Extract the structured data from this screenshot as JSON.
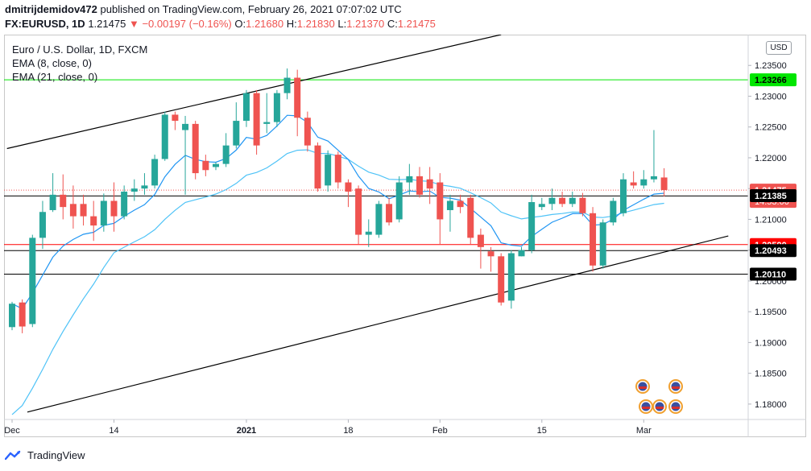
{
  "header": {
    "username": "dmitrijdemidov472",
    "published_text": "published on TradingView.com, February 26, 2021 07:07:02 UTC",
    "symbol": "FX:EURUSD, 1D",
    "last_price": "1.21475",
    "change_arrow": "▼",
    "change": "−0.00197 (−0.16%)",
    "o_label": "O:",
    "o_value": "1.21680",
    "h_label": "H:",
    "h_value": "1.21830",
    "l_label": "L:",
    "l_value": "1.21370",
    "c_label": "C:",
    "c_value": "1.21475"
  },
  "legend": {
    "title": "Euro / U.S. Dollar, 1D, FXCM",
    "ema8": "EMA (8, close, 0)",
    "ema21": "EMA (21, close, 0)"
  },
  "currency_button": "USD",
  "footer": {
    "brand": "TradingView"
  },
  "colors": {
    "up": "#26a69a",
    "down": "#ef5350",
    "ema8": "#2196f3",
    "ema21": "#4fc3f7",
    "green_level": "#00e600",
    "red_level": "#ff0000",
    "trend": "#000000"
  },
  "chart_data": {
    "type": "candlestick",
    "y_axis": {
      "min": 1.1775,
      "max": 1.24,
      "ticks": [
        "1.23500",
        "1.23000",
        "1.22500",
        "1.22000",
        "1.21500",
        "1.21000",
        "1.20500",
        "1.20000",
        "1.19500",
        "1.19000",
        "1.18500",
        "1.18000"
      ]
    },
    "x_axis": {
      "ticks": [
        {
          "label": "Dec",
          "index": 0
        },
        {
          "label": "14",
          "index": 10
        },
        {
          "label": "2021",
          "index": 23
        },
        {
          "label": "18",
          "index": 33
        },
        {
          "label": "Feb",
          "index": 42
        },
        {
          "label": "15",
          "index": 52
        },
        {
          "label": "Mar",
          "index": 62
        }
      ]
    },
    "horizontal_levels": [
      {
        "value": 1.23266,
        "label": "1.23266",
        "color": "#00e600",
        "label_bg": "#00e600",
        "label_color": "#000000"
      },
      {
        "value": 1.2138,
        "label": "",
        "color": "#000000",
        "label_bg": "",
        "label_color": ""
      },
      {
        "value": 1.2059,
        "label": "1.20590",
        "color": "#ff0000",
        "label_bg": "#ff0000",
        "label_color": "#ffffff"
      },
      {
        "value": 1.20493,
        "label": "1.20493",
        "color": "#000000",
        "label_bg": "#000000",
        "label_color": "#ffffff"
      },
      {
        "value": 1.2011,
        "label": "1.20110",
        "color": "#000000",
        "label_bg": "#000000",
        "label_color": "#ffffff"
      }
    ],
    "price_labels": [
      {
        "value": 1.21475,
        "label": "1.21475",
        "sub": "14:53:00",
        "bg": "#ef5350",
        "color": "#ffffff"
      },
      {
        "value": 1.21385,
        "label": "1.21385",
        "sub": "",
        "bg": "#000000",
        "color": "#ffffff"
      }
    ],
    "trend_lines": [
      {
        "i1": -0.5,
        "v1": 1.2215,
        "i2": 48.0,
        "v2": 1.24
      },
      {
        "i1": 1.5,
        "v1": 1.1787,
        "i2": 70.3,
        "v2": 1.2073
      }
    ],
    "current_price": 1.21475,
    "candles": [
      {
        "o": 1.1925,
        "h": 1.1966,
        "l": 1.192,
        "c": 1.1963
      },
      {
        "o": 1.1965,
        "h": 1.197,
        "l": 1.1915,
        "c": 1.1926
      },
      {
        "o": 1.193,
        "h": 1.2075,
        "l": 1.1925,
        "c": 1.207
      },
      {
        "o": 1.207,
        "h": 1.213,
        "l": 1.2052,
        "c": 1.2112
      },
      {
        "o": 1.2115,
        "h": 1.2175,
        "l": 1.2112,
        "c": 1.214
      },
      {
        "o": 1.214,
        "h": 1.2173,
        "l": 1.21,
        "c": 1.212
      },
      {
        "o": 1.2125,
        "h": 1.2155,
        "l": 1.2085,
        "c": 1.2105
      },
      {
        "o": 1.2125,
        "h": 1.214,
        "l": 1.209,
        "c": 1.2105
      },
      {
        "o": 1.2105,
        "h": 1.213,
        "l": 1.2065,
        "c": 1.209
      },
      {
        "o": 1.209,
        "h": 1.2142,
        "l": 1.208,
        "c": 1.213
      },
      {
        "o": 1.213,
        "h": 1.216,
        "l": 1.208,
        "c": 1.2105
      },
      {
        "o": 1.2105,
        "h": 1.2155,
        "l": 1.21,
        "c": 1.2145
      },
      {
        "o": 1.2145,
        "h": 1.2165,
        "l": 1.213,
        "c": 1.215
      },
      {
        "o": 1.215,
        "h": 1.2175,
        "l": 1.214,
        "c": 1.2155
      },
      {
        "o": 1.2155,
        "h": 1.2205,
        "l": 1.215,
        "c": 1.2198
      },
      {
        "o": 1.2198,
        "h": 1.2275,
        "l": 1.2195,
        "c": 1.227
      },
      {
        "o": 1.227,
        "h": 1.2275,
        "l": 1.2245,
        "c": 1.226
      },
      {
        "o": 1.2245,
        "h": 1.2268,
        "l": 1.214,
        "c": 1.2255
      },
      {
        "o": 1.2255,
        "h": 1.226,
        "l": 1.2165,
        "c": 1.2175
      },
      {
        "o": 1.2195,
        "h": 1.2205,
        "l": 1.217,
        "c": 1.218
      },
      {
        "o": 1.2185,
        "h": 1.2193,
        "l": 1.218,
        "c": 1.219
      },
      {
        "o": 1.219,
        "h": 1.224,
        "l": 1.2185,
        "c": 1.222
      },
      {
        "o": 1.222,
        "h": 1.229,
        "l": 1.2215,
        "c": 1.226
      },
      {
        "o": 1.226,
        "h": 1.231,
        "l": 1.225,
        "c": 1.2305
      },
      {
        "o": 1.2305,
        "h": 1.231,
        "l": 1.2205,
        "c": 1.222
      },
      {
        "o": 1.2255,
        "h": 1.2305,
        "l": 1.224,
        "c": 1.2258
      },
      {
        "o": 1.2258,
        "h": 1.231,
        "l": 1.225,
        "c": 1.2305
      },
      {
        "o": 1.2305,
        "h": 1.2345,
        "l": 1.2295,
        "c": 1.233
      },
      {
        "o": 1.233,
        "h": 1.2343,
        "l": 1.2235,
        "c": 1.2265
      },
      {
        "o": 1.2265,
        "h": 1.2275,
        "l": 1.221,
        "c": 1.222
      },
      {
        "o": 1.222,
        "h": 1.2225,
        "l": 1.2145,
        "c": 1.215
      },
      {
        "o": 1.2155,
        "h": 1.2212,
        "l": 1.2145,
        "c": 1.2205
      },
      {
        "o": 1.2205,
        "h": 1.221,
        "l": 1.215,
        "c": 1.216
      },
      {
        "o": 1.216,
        "h": 1.2165,
        "l": 1.212,
        "c": 1.2145
      },
      {
        "o": 1.215,
        "h": 1.2155,
        "l": 1.206,
        "c": 1.2075
      },
      {
        "o": 1.2075,
        "h": 1.21,
        "l": 1.2055,
        "c": 1.208
      },
      {
        "o": 1.2075,
        "h": 1.213,
        "l": 1.207,
        "c": 1.2125
      },
      {
        "o": 1.2125,
        "h": 1.2135,
        "l": 1.209,
        "c": 1.2095
      },
      {
        "o": 1.21,
        "h": 1.217,
        "l": 1.2095,
        "c": 1.216
      },
      {
        "o": 1.216,
        "h": 1.219,
        "l": 1.214,
        "c": 1.217
      },
      {
        "o": 1.217,
        "h": 1.2185,
        "l": 1.2135,
        "c": 1.214
      },
      {
        "o": 1.2165,
        "h": 1.2185,
        "l": 1.2125,
        "c": 1.215
      },
      {
        "o": 1.216,
        "h": 1.2175,
        "l": 1.206,
        "c": 1.21
      },
      {
        "o": 1.2115,
        "h": 1.214,
        "l": 1.208,
        "c": 1.213
      },
      {
        "o": 1.213,
        "h": 1.214,
        "l": 1.211,
        "c": 1.212
      },
      {
        "o": 1.2135,
        "h": 1.214,
        "l": 1.206,
        "c": 1.207
      },
      {
        "o": 1.2075,
        "h": 1.2085,
        "l": 1.202,
        "c": 1.2055
      },
      {
        "o": 1.2048,
        "h": 1.2055,
        "l": 1.2015,
        "c": 1.204
      },
      {
        "o": 1.204,
        "h": 1.2045,
        "l": 1.196,
        "c": 1.1965
      },
      {
        "o": 1.1968,
        "h": 1.205,
        "l": 1.1955,
        "c": 1.2045
      },
      {
        "o": 1.204,
        "h": 1.2055,
        "l": 1.204,
        "c": 1.205
      },
      {
        "o": 1.205,
        "h": 1.214,
        "l": 1.2045,
        "c": 1.2128
      },
      {
        "o": 1.212,
        "h": 1.2135,
        "l": 1.2115,
        "c": 1.2125
      },
      {
        "o": 1.2125,
        "h": 1.215,
        "l": 1.2115,
        "c": 1.2135
      },
      {
        "o": 1.2135,
        "h": 1.2145,
        "l": 1.212,
        "c": 1.2125
      },
      {
        "o": 1.2125,
        "h": 1.2145,
        "l": 1.212,
        "c": 1.2135
      },
      {
        "o": 1.2135,
        "h": 1.2143,
        "l": 1.2105,
        "c": 1.211
      },
      {
        "o": 1.211,
        "h": 1.212,
        "l": 1.2015,
        "c": 1.2025
      },
      {
        "o": 1.2025,
        "h": 1.21,
        "l": 1.202,
        "c": 1.2095
      },
      {
        "o": 1.2095,
        "h": 1.2135,
        "l": 1.209,
        "c": 1.213
      },
      {
        "o": 1.211,
        "h": 1.2175,
        "l": 1.2105,
        "c": 1.2165
      },
      {
        "o": 1.216,
        "h": 1.2178,
        "l": 1.215,
        "c": 1.2155
      },
      {
        "o": 1.2155,
        "h": 1.218,
        "l": 1.215,
        "c": 1.2165
      },
      {
        "o": 1.2165,
        "h": 1.2245,
        "l": 1.216,
        "c": 1.217
      },
      {
        "o": 1.2168,
        "h": 1.2183,
        "l": 1.2137,
        "c": 1.21475
      }
    ]
  }
}
